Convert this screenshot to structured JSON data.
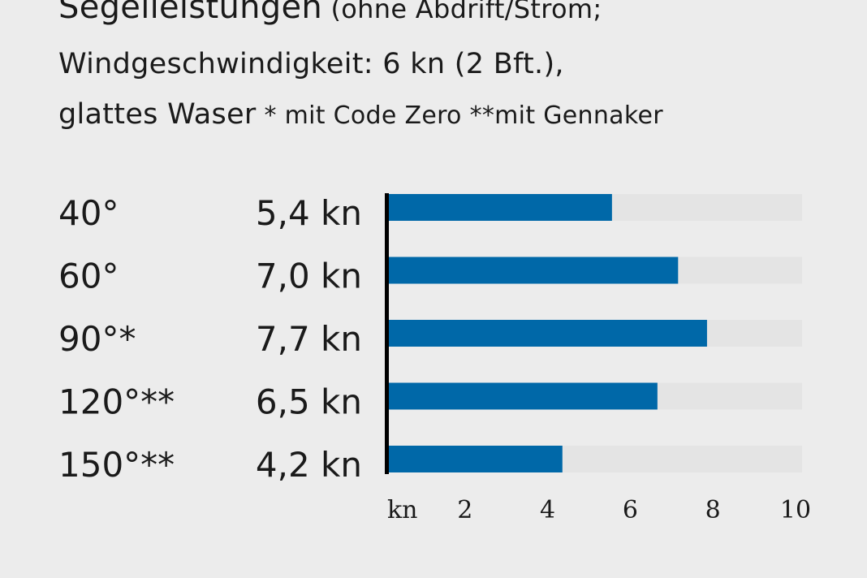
{
  "header": {
    "title_main": "Segelleistungen",
    "title_paren": " (ohne Abdrift/Strom;",
    "line2": "Windgeschwindigkeit: 6 kn (2 Bft.),",
    "line3_main": "glattes Waser",
    "line3_note1": " * mit Code Zero ",
    "line3_note2": "**mit Gennaker"
  },
  "chart_data": {
    "type": "bar",
    "orientation": "horizontal",
    "categories": [
      "40°",
      "60°",
      "90°*",
      "120°**",
      "150°**"
    ],
    "values": [
      5.4,
      7.0,
      7.7,
      6.5,
      4.2
    ],
    "value_labels": [
      "5,4 kn",
      "7,0 kn",
      "7,7 kn",
      "6,5 kn",
      "4,2 kn"
    ],
    "unit_label": "kn",
    "xlim": [
      0,
      10
    ],
    "xticks": [
      "2",
      "4",
      "6",
      "8",
      "10"
    ],
    "xtick_values": [
      2,
      4,
      6,
      8,
      10
    ],
    "bar_color": "#0068a8",
    "track_color": "#e4e4e4",
    "axis_color": "#000000"
  }
}
